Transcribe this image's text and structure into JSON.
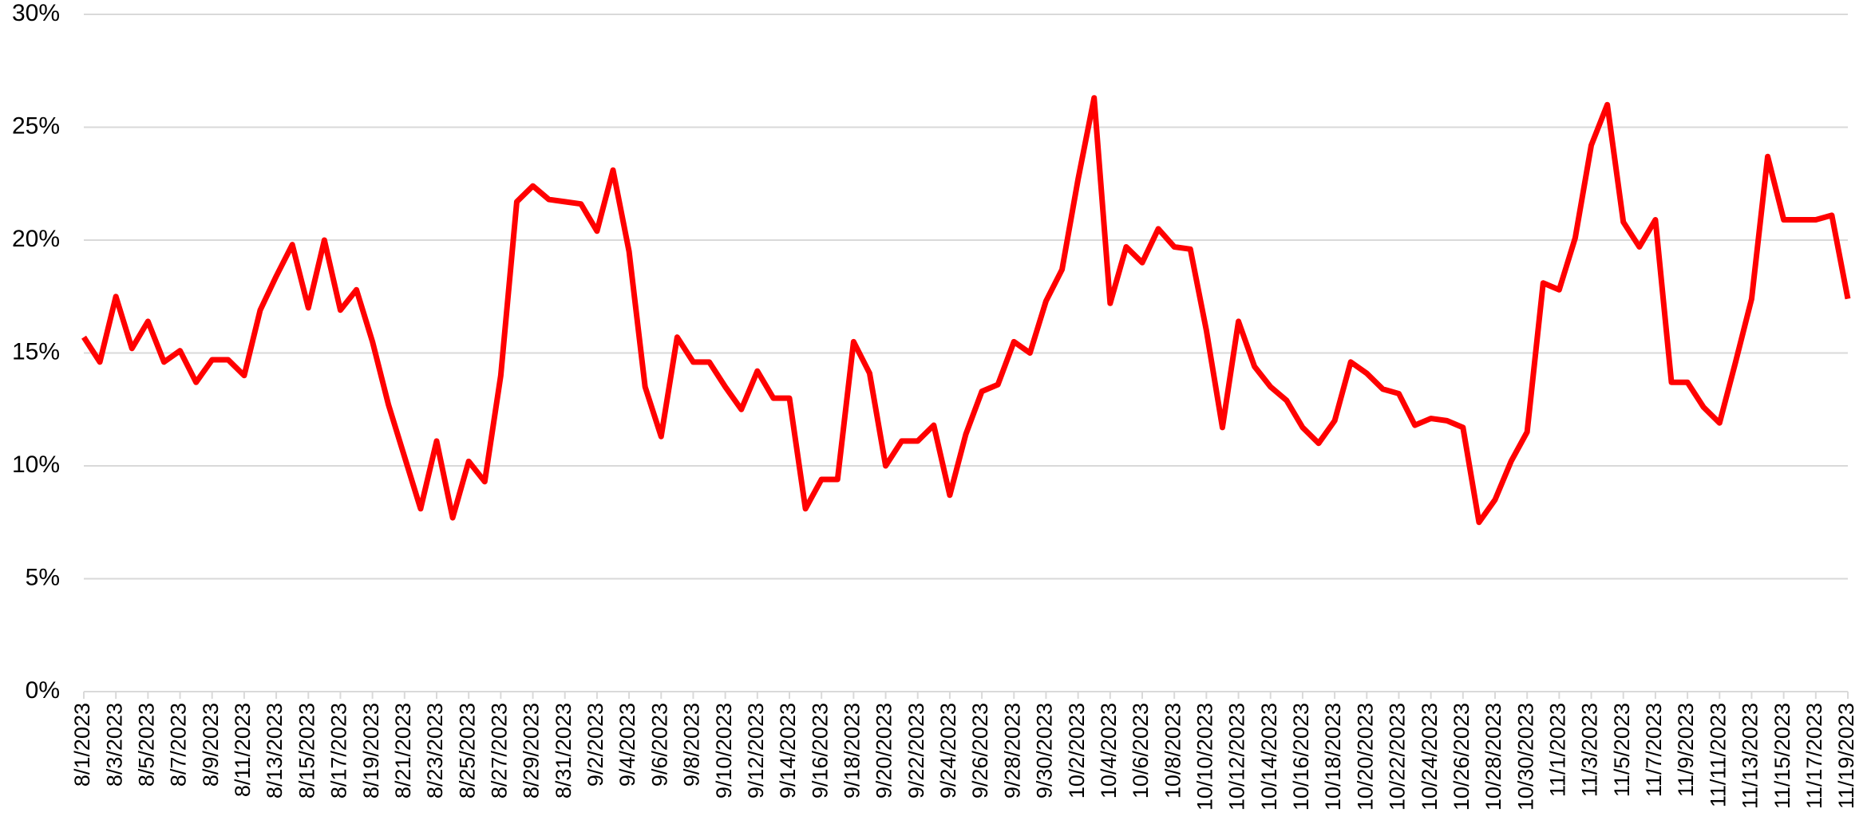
{
  "chart_data": {
    "type": "line",
    "categories": [
      "8/1/2023",
      null,
      "8/3/2023",
      null,
      "8/5/2023",
      null,
      "8/7/2023",
      null,
      "8/9/2023",
      null,
      "8/11/2023",
      null,
      "8/13/2023",
      null,
      "8/15/2023",
      null,
      "8/17/2023",
      null,
      "8/19/2023",
      null,
      "8/21/2023",
      null,
      "8/23/2023",
      null,
      "8/25/2023",
      null,
      "8/27/2023",
      null,
      "8/29/2023",
      null,
      "8/31/2023",
      null,
      "9/2/2023",
      null,
      "9/4/2023",
      null,
      "9/6/2023",
      null,
      "9/8/2023",
      null,
      "9/10/2023",
      null,
      "9/12/2023",
      null,
      "9/14/2023",
      null,
      "9/16/2023",
      null,
      "9/18/2023",
      null,
      "9/20/2023",
      null,
      "9/22/2023",
      null,
      "9/24/2023",
      null,
      "9/26/2023",
      null,
      "9/28/2023",
      null,
      "9/30/2023",
      null,
      "10/2/2023",
      null,
      "10/4/2023",
      null,
      "10/6/2023",
      null,
      "10/8/2023",
      null,
      "10/10/2023",
      null,
      "10/12/2023",
      null,
      "10/14/2023",
      null,
      "10/16/2023",
      null,
      "10/18/2023",
      null,
      "10/20/2023",
      null,
      "10/22/2023",
      null,
      "10/24/2023",
      null,
      "10/26/2023",
      null,
      "10/28/2023",
      null,
      "10/30/2023",
      null,
      "11/1/2023",
      null,
      "11/3/2023",
      null,
      "11/5/2023",
      null,
      "11/7/2023",
      null,
      "11/9/2023",
      null,
      "11/11/2023",
      null,
      "11/13/2023",
      null,
      "11/15/2023",
      null,
      "11/17/2023",
      null,
      "11/19/2023"
    ],
    "values": [
      15.7,
      14.6,
      17.5,
      15.2,
      16.4,
      14.6,
      15.1,
      13.7,
      14.7,
      14.7,
      14.0,
      16.9,
      18.4,
      19.8,
      17.0,
      20.0,
      16.9,
      17.8,
      15.5,
      12.7,
      10.4,
      8.1,
      11.1,
      7.7,
      10.2,
      9.3,
      14.0,
      21.7,
      22.4,
      21.8,
      21.7,
      21.6,
      20.4,
      23.1,
      19.5,
      13.5,
      11.3,
      15.7,
      14.6,
      14.6,
      13.5,
      12.5,
      14.2,
      13.0,
      13.0,
      8.1,
      9.4,
      9.4,
      15.5,
      14.1,
      10.0,
      11.1,
      11.1,
      11.8,
      8.7,
      11.4,
      13.3,
      13.6,
      15.5,
      15.0,
      17.3,
      18.7,
      22.7,
      26.3,
      17.2,
      19.7,
      19.0,
      20.5,
      19.7,
      19.6,
      16.0,
      11.7,
      16.4,
      14.4,
      13.5,
      12.9,
      11.7,
      11.0,
      12.0,
      14.6,
      14.1,
      13.4,
      13.2,
      11.8,
      12.1,
      12.0,
      11.7,
      7.5,
      8.5,
      10.2,
      11.5,
      18.1,
      17.8,
      20.1,
      24.2,
      26.0,
      20.8,
      19.7,
      20.9,
      13.7,
      13.7,
      12.6,
      11.9,
      14.6,
      17.4,
      23.7,
      20.9,
      20.9,
      20.9,
      21.1,
      17.4
    ],
    "color": "#ff0000",
    "ylim": [
      0,
      30
    ],
    "yticks": [
      {
        "value": 0,
        "label": "0%"
      },
      {
        "value": 5,
        "label": "5%"
      },
      {
        "value": 10,
        "label": "10%"
      },
      {
        "value": 15,
        "label": "15%"
      },
      {
        "value": 20,
        "label": "20%"
      },
      {
        "value": 25,
        "label": "25%"
      },
      {
        "value": 30,
        "label": "30%"
      }
    ],
    "grid": true
  }
}
